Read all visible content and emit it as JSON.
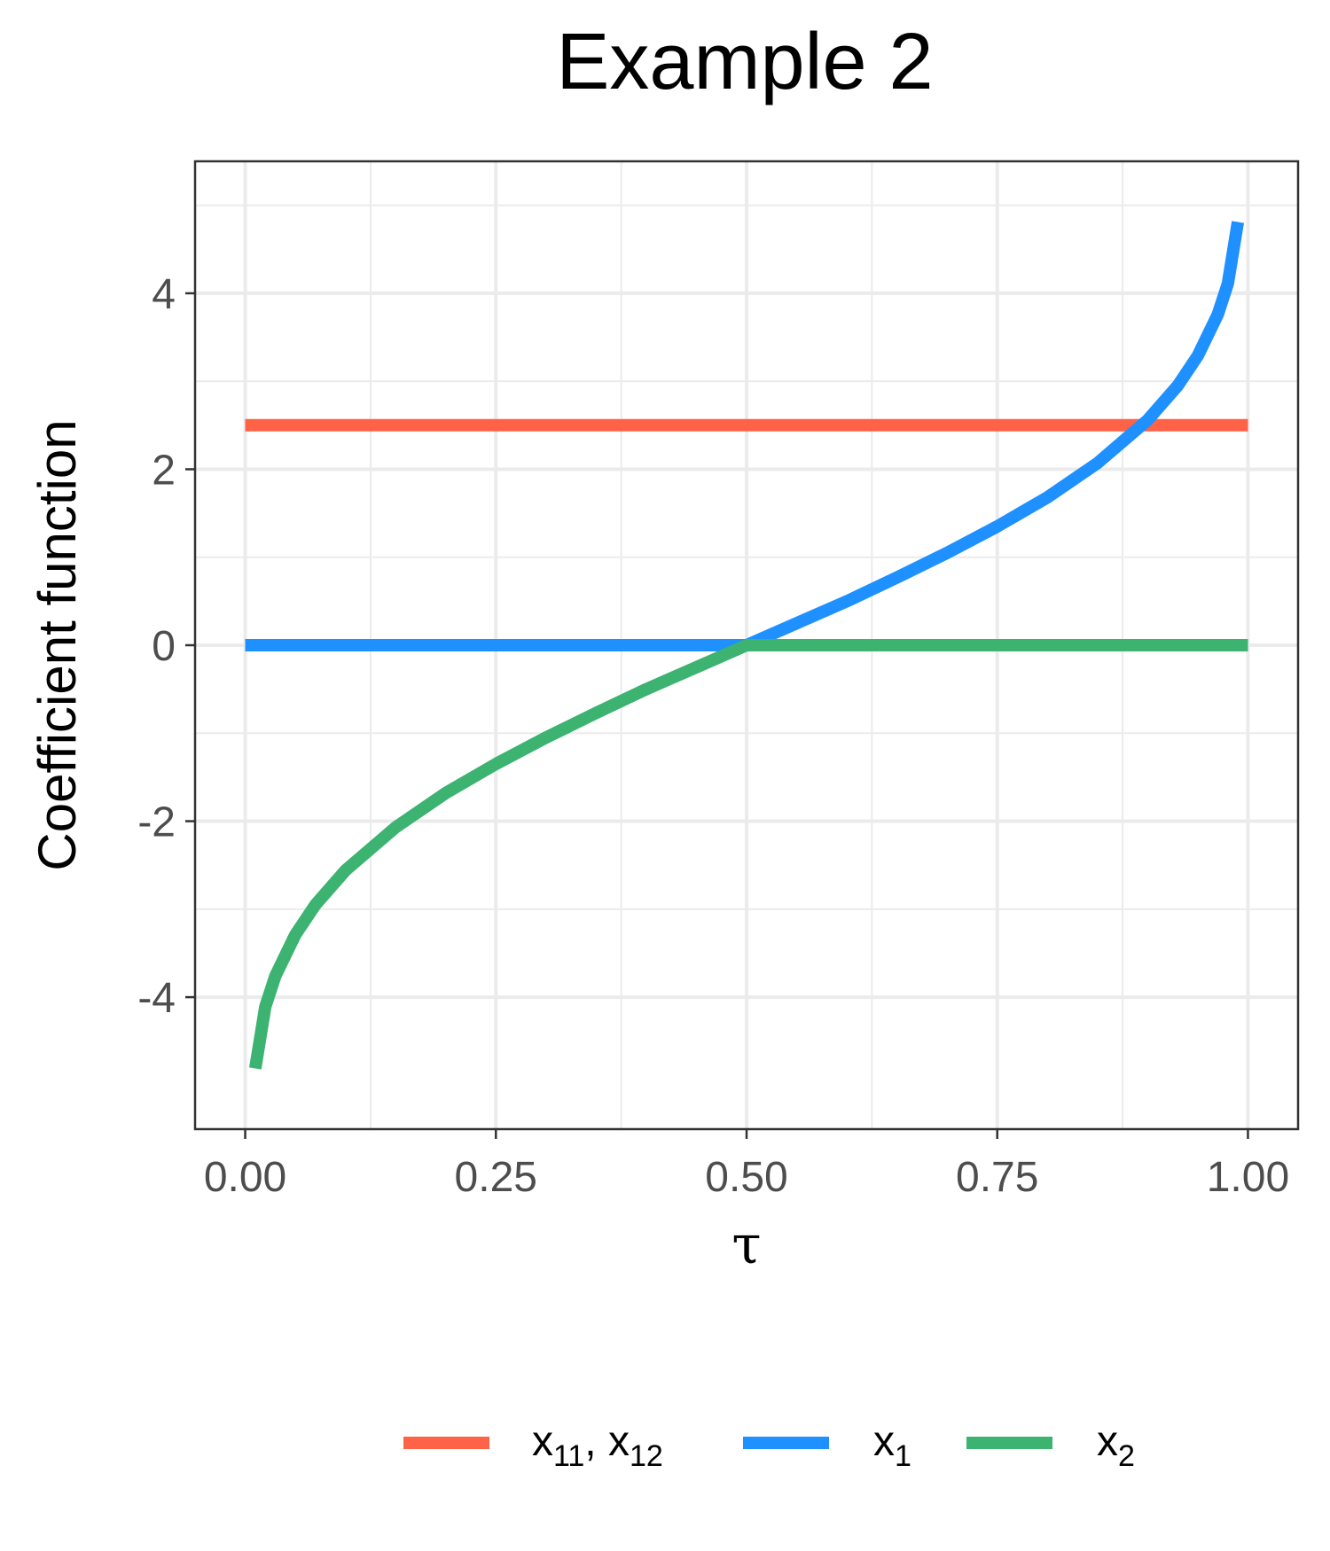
{
  "chart_data": {
    "type": "line",
    "title": "Example 2",
    "xlabel": "τ",
    "ylabel": "Coefficient function",
    "xlim": [
      -0.05,
      1.05
    ],
    "ylim": [
      -5.5,
      5.5
    ],
    "x_ticks": [
      0,
      0.25,
      0.5,
      0.75,
      1
    ],
    "x_tick_labels": [
      "0.00",
      "0.25",
      "0.50",
      "0.75",
      "1.00"
    ],
    "y_ticks": [
      -4,
      -2,
      0,
      2,
      4
    ],
    "y_tick_labels": [
      "-4",
      "-2",
      "0",
      "2",
      "4"
    ],
    "grid": true,
    "legend_position": "bottom",
    "series": [
      {
        "name": "x11, x12",
        "name_parts": {
          "base1": "x",
          "sub1": "11",
          "sep": ", ",
          "base2": "x",
          "sub2": "12"
        },
        "color": "#FF6347",
        "x": [
          0,
          1
        ],
        "values": [
          2.5,
          2.5
        ]
      },
      {
        "name": "x1",
        "name_parts": {
          "base": "x",
          "sub": "1"
        },
        "color": "#1E90FF",
        "x": [
          0,
          0.5,
          0.51,
          0.55,
          0.6,
          0.65,
          0.7,
          0.75,
          0.8,
          0.85,
          0.9,
          0.93,
          0.95,
          0.97,
          0.98,
          0.99
        ],
        "values": [
          0,
          0,
          0.05,
          0.25,
          0.5,
          0.77,
          1.05,
          1.35,
          1.68,
          2.07,
          2.56,
          2.95,
          3.29,
          3.76,
          4.11,
          4.81
        ]
      },
      {
        "name": "x2",
        "name_parts": {
          "base": "x",
          "sub": "2"
        },
        "color": "#3CB371",
        "x": [
          0.01,
          0.02,
          0.03,
          0.05,
          0.07,
          0.1,
          0.15,
          0.2,
          0.25,
          0.3,
          0.35,
          0.4,
          0.45,
          0.49,
          0.5,
          1
        ],
        "values": [
          -4.81,
          -4.11,
          -3.76,
          -3.29,
          -2.95,
          -2.56,
          -2.07,
          -1.68,
          -1.35,
          -1.05,
          -0.77,
          -0.5,
          -0.25,
          -0.05,
          0,
          0
        ]
      }
    ]
  }
}
